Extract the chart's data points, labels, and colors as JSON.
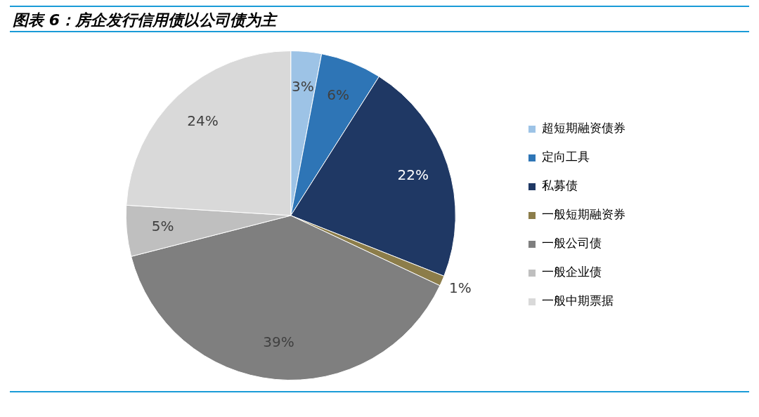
{
  "chart_data": {
    "type": "pie",
    "title": "图表 6：房企发行信用债以公司债为主",
    "categories": [
      "超短期融资债券",
      "定向工具",
      "私募债",
      "一般短期融资券",
      "一般公司债",
      "一般企业债",
      "一般中期票据"
    ],
    "values": [
      3,
      6,
      22,
      1,
      39,
      5,
      24
    ],
    "value_labels": [
      "3%",
      "6%",
      "22%",
      "1%",
      "39%",
      "5%",
      "24%"
    ],
    "colors": [
      "#9dc3e6",
      "#2e75b6",
      "#1f3864",
      "#8c7d4a",
      "#7f7f7f",
      "#bfbfbf",
      "#d9d9d9"
    ],
    "legend": "right"
  }
}
